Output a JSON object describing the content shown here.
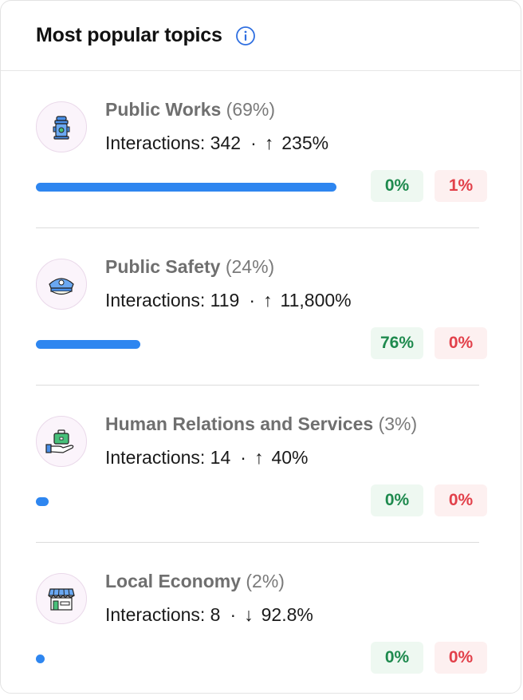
{
  "header": {
    "title": "Most popular topics",
    "info_icon": "info-icon"
  },
  "colors": {
    "bar": "#2e86f0",
    "positive": "#1e8a4e",
    "negative": "#e2404a",
    "info": "#2f6fe0"
  },
  "topics": [
    {
      "name": "Public Works",
      "percent_text": "(69%)",
      "share": 0.69,
      "interactions_label": "Interactions: 342",
      "separator": "·",
      "trend_arrow": "↑",
      "trend_value": "235%",
      "positive": "0%",
      "negative": "1%",
      "icon": "fire-hydrant-icon"
    },
    {
      "name": "Public Safety",
      "percent_text": "(24%)",
      "share": 0.24,
      "interactions_label": "Interactions: 119",
      "separator": "·",
      "trend_arrow": "↑",
      "trend_value": "11,800%",
      "positive": "76%",
      "negative": "0%",
      "icon": "police-cap-icon"
    },
    {
      "name": "Human Relations and Services",
      "percent_text": "(3%)",
      "share": 0.03,
      "interactions_label": "Interactions: 14",
      "separator": "·",
      "trend_arrow": "↑",
      "trend_value": "40%",
      "positive": "0%",
      "negative": "0%",
      "icon": "hand-briefcase-icon"
    },
    {
      "name": "Local Economy",
      "percent_text": "(2%)",
      "share": 0.02,
      "interactions_label": "Interactions: 8",
      "separator": "·",
      "trend_arrow": "↓",
      "trend_value": "92.8%",
      "positive": "0%",
      "negative": "0%",
      "icon": "storefront-icon"
    }
  ]
}
